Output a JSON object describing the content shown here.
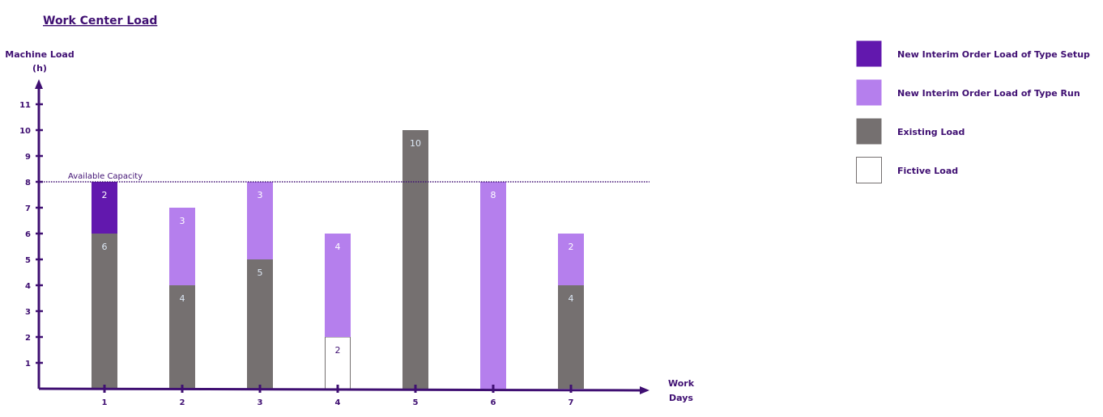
{
  "chart_data": {
    "type": "bar",
    "stacked": true,
    "title": "Work Center Load",
    "ylabel_line1": "Machine Load",
    "ylabel_line2": "(h)",
    "xlabel_line1": "Work",
    "xlabel_line2": "Days",
    "ylim": [
      0,
      12
    ],
    "yticks": [
      1,
      2,
      3,
      4,
      5,
      6,
      7,
      8,
      9,
      10,
      11
    ],
    "categories": [
      "1",
      "2",
      "3",
      "4",
      "5",
      "6",
      "7"
    ],
    "capacity": {
      "label": "Available Capacity",
      "value": 8
    },
    "legend_placement": "right",
    "series": [
      {
        "name": "Fictive Load",
        "color": "#ffffff",
        "values": [
          0,
          0,
          0,
          2,
          0,
          0,
          0
        ]
      },
      {
        "name": "Existing Load",
        "color": "#757070",
        "values": [
          6,
          4,
          5,
          0,
          10,
          0,
          4
        ]
      },
      {
        "name": "New Interim Order Load of Type Run",
        "color": "#b57fed",
        "values": [
          0,
          3,
          3,
          4,
          0,
          8,
          2
        ]
      },
      {
        "name": "New Interim Order Load of Type Setup",
        "color": "#6218ae",
        "values": [
          2,
          0,
          0,
          0,
          0,
          0,
          0
        ]
      }
    ],
    "legend_order": [
      3,
      2,
      1,
      0
    ],
    "axis_color": "#3f0f72",
    "text_color": "#3f0f72"
  }
}
